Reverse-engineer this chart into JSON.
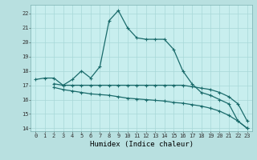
{
  "title": "",
  "xlabel": "Humidex (Indice chaleur)",
  "ylabel": "",
  "bg_color": "#b8e0e0",
  "plot_bg_color": "#c8eeee",
  "line_color": "#1a6b6b",
  "grid_color": "#a8d8d8",
  "xlim": [
    -0.5,
    23.5
  ],
  "ylim": [
    13.8,
    22.6
  ],
  "yticks": [
    14,
    15,
    16,
    17,
    18,
    19,
    20,
    21,
    22
  ],
  "xticks": [
    0,
    1,
    2,
    3,
    4,
    5,
    6,
    7,
    8,
    9,
    10,
    11,
    12,
    13,
    14,
    15,
    16,
    17,
    18,
    19,
    20,
    21,
    22,
    23
  ],
  "series1_x": [
    0,
    1,
    2,
    3,
    4,
    5,
    6,
    7,
    8,
    9,
    10,
    11,
    12,
    13,
    14,
    15,
    16,
    17,
    18,
    19,
    20,
    21,
    22,
    23
  ],
  "series1_y": [
    17.4,
    17.5,
    17.5,
    17.0,
    17.4,
    18.0,
    17.5,
    18.3,
    21.5,
    22.2,
    21.0,
    20.3,
    20.2,
    20.2,
    20.2,
    19.5,
    18.0,
    17.1,
    16.5,
    16.3,
    16.0,
    15.7,
    14.5,
    14.0
  ],
  "series2_x": [
    2,
    3,
    4,
    5,
    6,
    7,
    8,
    9,
    10,
    11,
    12,
    13,
    14,
    15,
    16,
    17,
    18,
    19,
    20,
    21,
    22,
    23
  ],
  "series2_y": [
    17.1,
    17.0,
    17.0,
    17.0,
    17.0,
    17.0,
    17.0,
    17.0,
    17.0,
    17.0,
    17.0,
    17.0,
    17.0,
    17.0,
    17.0,
    16.9,
    16.8,
    16.7,
    16.5,
    16.2,
    15.7,
    14.5
  ],
  "series3_x": [
    2,
    3,
    4,
    5,
    6,
    7,
    8,
    9,
    10,
    11,
    12,
    13,
    14,
    15,
    16,
    17,
    18,
    19,
    20,
    21,
    22,
    23
  ],
  "series3_y": [
    16.85,
    16.7,
    16.6,
    16.5,
    16.4,
    16.35,
    16.3,
    16.2,
    16.1,
    16.05,
    16.0,
    15.95,
    15.9,
    15.8,
    15.75,
    15.65,
    15.55,
    15.4,
    15.2,
    14.9,
    14.5,
    14.0
  ],
  "marker_size": 3.5,
  "linewidth": 0.9,
  "tick_fontsize": 5.0,
  "label_fontsize": 6.5
}
